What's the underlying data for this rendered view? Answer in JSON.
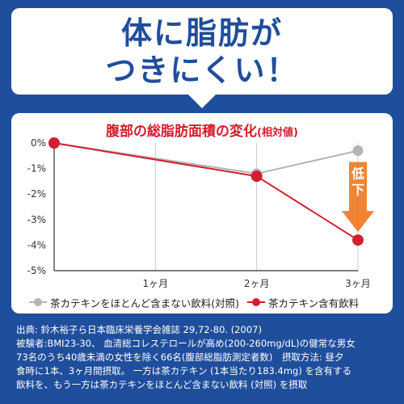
{
  "headline": {
    "line1": "体に脂肪が",
    "line2": "つきにくい！"
  },
  "colors": {
    "background": "#1f4e9c",
    "accent_red": "#d21e2e",
    "series_gray": "#b4b4b4",
    "arrow_orange": "#f07a22"
  },
  "chart_data": {
    "type": "line",
    "title": "腹部の総脂肪面積の変化",
    "subtitle": "(相対値)",
    "x": [
      0,
      1,
      2,
      3
    ],
    "x_tick_labels": [
      "",
      "1ヶ月",
      "2ヶ月",
      "3ヶ月"
    ],
    "y_ticks": [
      0,
      -1,
      -2,
      -3,
      -4,
      -5
    ],
    "y_tick_labels": [
      "0%",
      "-1%",
      "-2%",
      "-3%",
      "-4%",
      "-5%"
    ],
    "ylim": [
      -5,
      0
    ],
    "grid": "vertical",
    "series": [
      {
        "name": "茶カテキンをほとんど含まない飲料(対照)",
        "color": "#b4b4b4",
        "values": [
          0,
          null,
          -1.2,
          -0.3
        ]
      },
      {
        "name": "茶カテキン含有飲料",
        "color": "#d21e2e",
        "values": [
          0,
          null,
          -1.3,
          -3.8
        ]
      }
    ],
    "annotation": "低下",
    "legend_position": "bottom"
  },
  "footnote": {
    "line1": "出典: 鈴木裕子ら日本臨床栄養学会雑誌 29,72-80. (2007)",
    "line2": "被験者:BMI23-30、 血清総コレステロールが高め(200-260mg/dL)の健常な男女",
    "line3": "73名のうち40歳未満の女性を除く66名(腹部総脂肪測定者数)　摂取方法: 昼夕",
    "line4": "食時に1本、3ヶ月間摂取。 一方は茶カテキン (1本当たり183.4mg) を含有する",
    "line5": "飲料を、もう一方は茶カテキンをほとんど含まない飲料 (対照) を摂取"
  }
}
